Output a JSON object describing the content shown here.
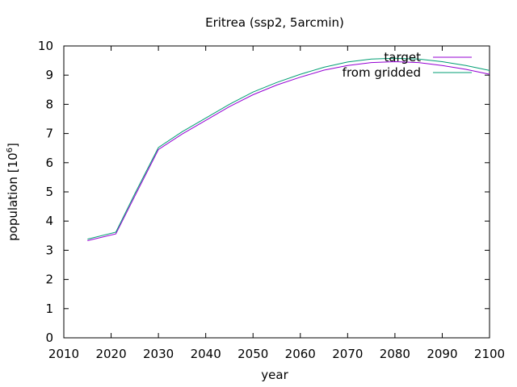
{
  "chart_data": {
    "type": "line",
    "title": "Eritrea (ssp2, 5arcmin)",
    "xlabel": "year",
    "ylabel": "population [10",
    "ylabel_exp": "6",
    "ylabel_close": "]",
    "xlim": [
      2010,
      2100
    ],
    "ylim": [
      0,
      10
    ],
    "xticks": [
      2010,
      2020,
      2030,
      2040,
      2050,
      2060,
      2070,
      2080,
      2090,
      2100
    ],
    "yticks": [
      0,
      1,
      2,
      3,
      4,
      5,
      6,
      7,
      8,
      9,
      10
    ],
    "grid": false,
    "legend_position": "top-right",
    "x": [
      2015,
      2021,
      2025,
      2030,
      2035,
      2040,
      2045,
      2050,
      2055,
      2060,
      2065,
      2070,
      2075,
      2080,
      2085,
      2090,
      2095,
      2100
    ],
    "series": [
      {
        "name": "target",
        "color": "#9400d3",
        "values": [
          3.33,
          3.56,
          4.85,
          6.45,
          6.98,
          7.45,
          7.92,
          8.33,
          8.66,
          8.93,
          9.17,
          9.33,
          9.43,
          9.46,
          9.43,
          9.33,
          9.2,
          9.03
        ]
      },
      {
        "name": "from gridded",
        "color": "#009e73",
        "values": [
          3.38,
          3.62,
          4.93,
          6.52,
          7.06,
          7.53,
          8.0,
          8.42,
          8.75,
          9.03,
          9.27,
          9.45,
          9.55,
          9.58,
          9.55,
          9.46,
          9.33,
          9.16
        ]
      }
    ]
  }
}
